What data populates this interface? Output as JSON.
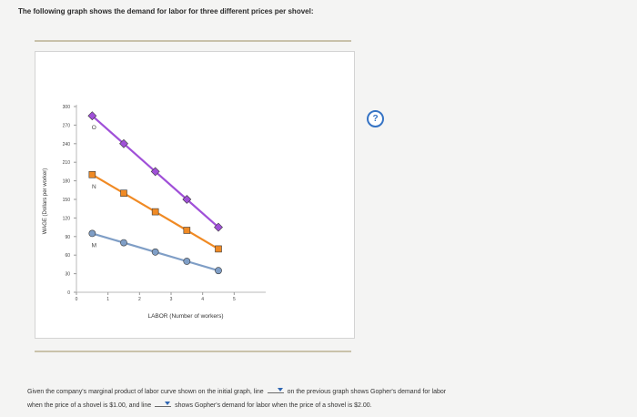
{
  "header": {
    "intro": "The following graph shows the demand for labor for three different prices per shovel:"
  },
  "help": {
    "label": "?"
  },
  "chart_data": {
    "type": "line",
    "xlabel": "LABOR (Number of workers)",
    "ylabel": "WAGE (Dollars per worker)",
    "xlim": [
      0,
      6
    ],
    "ylim": [
      0,
      300
    ],
    "xticks": [
      "0",
      "1",
      "2",
      "3",
      "4",
      "5"
    ],
    "yticks": [
      "0",
      "30",
      "60",
      "90",
      "120",
      "150",
      "180",
      "210",
      "240",
      "270",
      "300"
    ],
    "series": [
      {
        "name": "O",
        "color": "#a050d8",
        "marker": "diamond",
        "x": [
          0.5,
          1.5,
          2.5,
          3.5,
          4.5
        ],
        "y": [
          285,
          240,
          195,
          150,
          105
        ]
      },
      {
        "name": "N",
        "color": "#f08a24",
        "marker": "square",
        "x": [
          0.5,
          1.5,
          2.5,
          3.5,
          4.5
        ],
        "y": [
          190,
          160,
          130,
          100,
          70
        ]
      },
      {
        "name": "M",
        "color": "#7f9ec6",
        "marker": "circle",
        "x": [
          0.5,
          1.5,
          2.5,
          3.5,
          4.5
        ],
        "y": [
          95,
          80,
          65,
          50,
          35
        ]
      }
    ]
  },
  "question": {
    "line1_a": "Given the company's marginal product of labor curve shown on the initial graph, line",
    "line1_b": "on the previous graph shows Gopher's demand for labor",
    "line2_a": "when the price of a shovel is $1.00, and line",
    "line2_b": "shows Gopher's demand for labor when the price of a shovel is $2.00."
  }
}
